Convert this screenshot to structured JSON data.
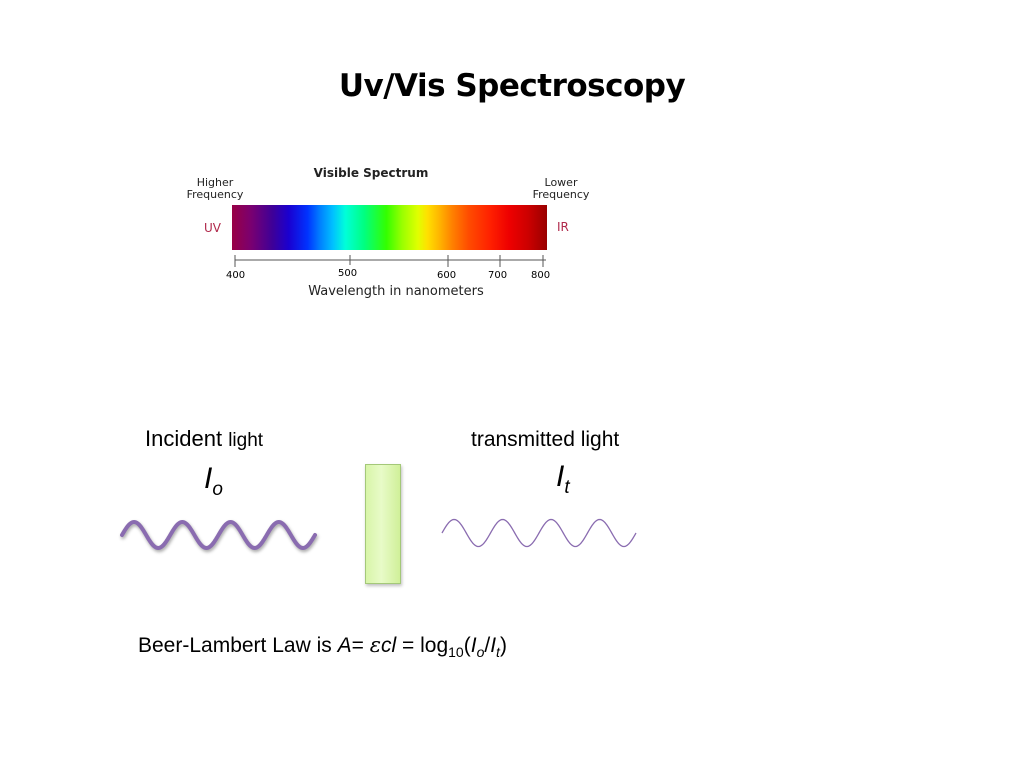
{
  "slide": {
    "title": "Uv/Vis Spectroscopy"
  },
  "spectrum": {
    "title": "Visible Spectrum",
    "left_label_line1": "Higher",
    "left_label_line2": "Frequency",
    "right_label_line1": "Lower",
    "right_label_line2": "Frequency",
    "uv_label": "UV",
    "ir_label": "IR",
    "ticks": [
      "400",
      "500",
      "600",
      "700",
      "800"
    ],
    "axis_label": "Wavelength in nanometers",
    "colors": {
      "uv": "#b0284a"
    }
  },
  "diagram": {
    "incident_word": "Incident",
    "incident_light": "light",
    "incident_symbol": "I",
    "incident_subscript": "o",
    "transmitted_label": "transmitted light",
    "transmitted_symbol": "I",
    "transmitted_subscript": "t",
    "wave_color": "#8a6cb0",
    "cell_color": "#d8f5a8"
  },
  "equation": {
    "prefix": "Beer-Lambert Law is ",
    "A": "A",
    "eq1": "= ",
    "epsilon": "ε",
    "cl": "cl",
    "eq2": " = log",
    "base": "10",
    "open": "(",
    "Io_I": "I",
    "Io_sub": "o",
    "slash": "/",
    "It_I": "I",
    "It_sub": "t",
    "close": ")"
  }
}
